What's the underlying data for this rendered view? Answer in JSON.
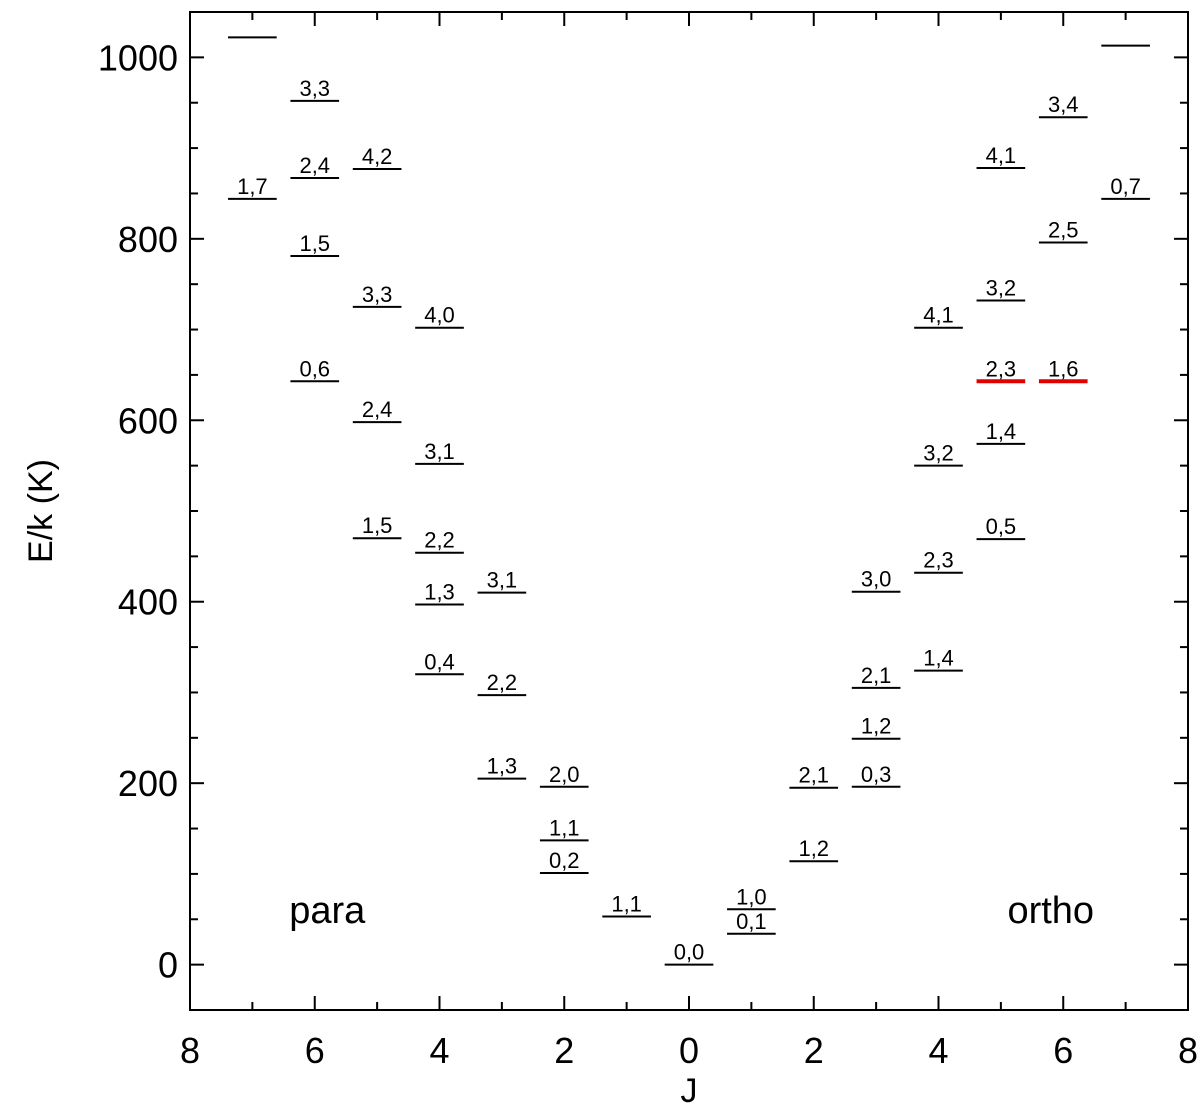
{
  "chart_data": {
    "type": "scatter",
    "title": "",
    "xlabel": "J",
    "ylabel": "E/k (K)",
    "xlim": [
      -8,
      8
    ],
    "ylim": [
      -50,
      1050
    ],
    "x_axis_note": "x axis shows |J|; para levels plotted on the left (negative side), ortho levels on the right",
    "x_ticks": [
      -8,
      -6,
      -4,
      -2,
      0,
      2,
      4,
      6,
      8
    ],
    "x_tick_labels": [
      "8",
      "6",
      "4",
      "2",
      "0",
      "2",
      "4",
      "6",
      "8"
    ],
    "y_ticks": [
      0,
      200,
      400,
      600,
      800,
      1000
    ],
    "y_tick_labels": [
      "0",
      "200",
      "400",
      "600",
      "800",
      "1000"
    ],
    "grid": false,
    "highlight_color": "#e00000",
    "line_color": "#000000",
    "group_labels": [
      {
        "text": "para",
        "x": -5.8,
        "y": 60
      },
      {
        "text": "ortho",
        "x": 5.8,
        "y": 60
      }
    ],
    "series": [
      {
        "name": "para",
        "levels": [
          {
            "J": 7,
            "label": "",
            "E": 1022
          },
          {
            "J": 7,
            "label": "1,7",
            "E": 844
          },
          {
            "J": 6,
            "label": "3,3",
            "E": 952
          },
          {
            "J": 6,
            "label": "2,4",
            "E": 867
          },
          {
            "J": 6,
            "label": "1,5",
            "E": 781
          },
          {
            "J": 6,
            "label": "0,6",
            "E": 643
          },
          {
            "J": 5,
            "label": "4,2",
            "E": 877
          },
          {
            "J": 5,
            "label": "3,3",
            "E": 725
          },
          {
            "J": 5,
            "label": "2,4",
            "E": 598
          },
          {
            "J": 5,
            "label": "1,5",
            "E": 470
          },
          {
            "J": 4,
            "label": "4,0",
            "E": 702
          },
          {
            "J": 4,
            "label": "3,1",
            "E": 552
          },
          {
            "J": 4,
            "label": "2,2",
            "E": 454
          },
          {
            "J": 4,
            "label": "1,3",
            "E": 397
          },
          {
            "J": 4,
            "label": "0,4",
            "E": 320
          },
          {
            "J": 3,
            "label": "3,1",
            "E": 410
          },
          {
            "J": 3,
            "label": "2,2",
            "E": 297
          },
          {
            "J": 3,
            "label": "1,3",
            "E": 205
          },
          {
            "J": 2,
            "label": "2,0",
            "E": 196
          },
          {
            "J": 2,
            "label": "1,1",
            "E": 137
          },
          {
            "J": 2,
            "label": "0,2",
            "E": 101
          },
          {
            "J": 1,
            "label": "1,1",
            "E": 53
          },
          {
            "J": 0,
            "label": "0,0",
            "E": 0
          }
        ]
      },
      {
        "name": "ortho",
        "levels": [
          {
            "J": 1,
            "label": "1,0",
            "E": 61
          },
          {
            "J": 1,
            "label": "0,1",
            "E": 34
          },
          {
            "J": 2,
            "label": "2,1",
            "E": 195
          },
          {
            "J": 2,
            "label": "1,2",
            "E": 114
          },
          {
            "J": 3,
            "label": "3,0",
            "E": 411
          },
          {
            "J": 3,
            "label": "2,1",
            "E": 305
          },
          {
            "J": 3,
            "label": "1,2",
            "E": 249
          },
          {
            "J": 3,
            "label": "0,3",
            "E": 196
          },
          {
            "J": 4,
            "label": "4,1",
            "E": 702
          },
          {
            "J": 4,
            "label": "3,2",
            "E": 550
          },
          {
            "J": 4,
            "label": "2,3",
            "E": 432
          },
          {
            "J": 4,
            "label": "1,4",
            "E": 324
          },
          {
            "J": 5,
            "label": "4,1",
            "E": 878
          },
          {
            "J": 5,
            "label": "3,2",
            "E": 732
          },
          {
            "J": 5,
            "label": "2,3",
            "E": 643,
            "highlight": true
          },
          {
            "J": 5,
            "label": "1,4",
            "E": 574
          },
          {
            "J": 5,
            "label": "0,5",
            "E": 469
          },
          {
            "J": 6,
            "label": "3,4",
            "E": 934
          },
          {
            "J": 6,
            "label": "2,5",
            "E": 796
          },
          {
            "J": 6,
            "label": "1,6",
            "E": 643,
            "highlight": true
          },
          {
            "J": 7,
            "label": "",
            "E": 1013
          },
          {
            "J": 7,
            "label": "0,7",
            "E": 844
          }
        ]
      }
    ]
  }
}
